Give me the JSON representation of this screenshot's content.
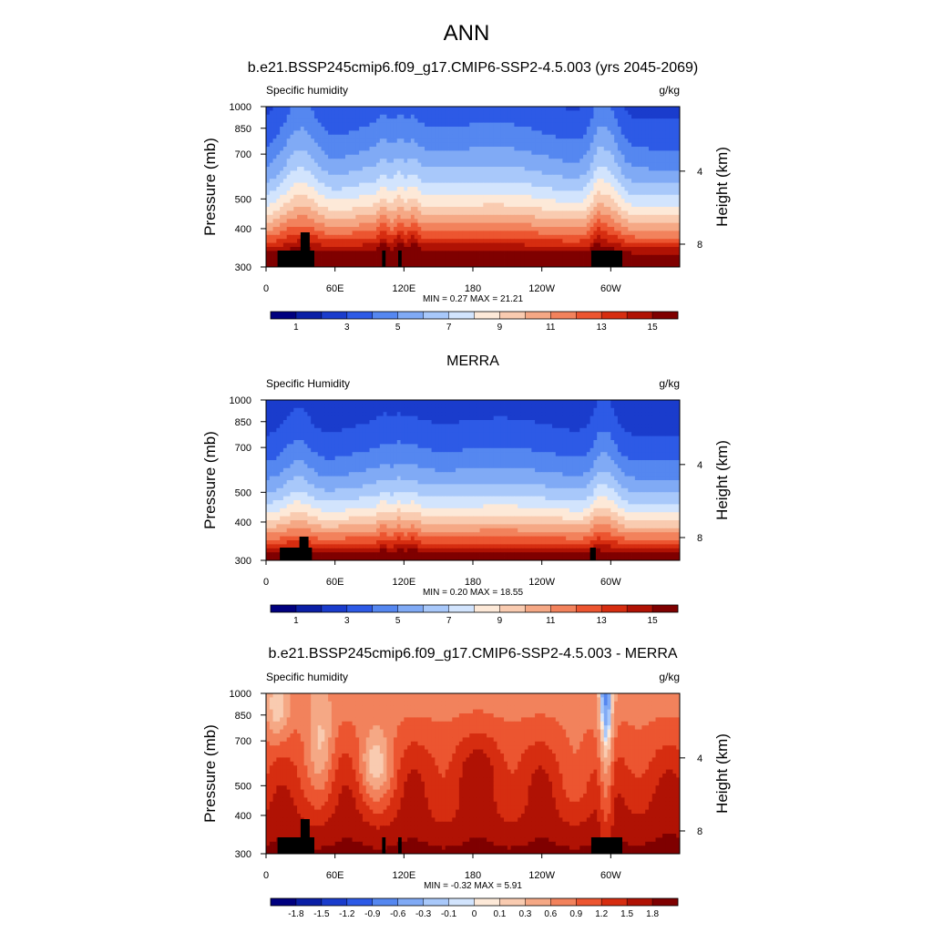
{
  "figure_title": "ANN",
  "chart_data": [
    {
      "type": "heatmap",
      "title": "b.e21.BSSP245cmip6.f09_g17.CMIP6-SSP2-4.5.003 (yrs 2045-2069)",
      "left_string": "Specific humidity",
      "right_string": "g/kg",
      "ylabel": "Pressure (mb)",
      "ylabel_right": "Height (km)",
      "x_ticks": [
        "0",
        "60E",
        "120E",
        "180",
        "120W",
        "60W"
      ],
      "x_tick_lons": [
        0,
        60,
        120,
        180,
        240,
        300
      ],
      "xlim": [
        0,
        360
      ],
      "y_ticks": [
        "300",
        "400",
        "500",
        "700",
        "850",
        "1000"
      ],
      "y_tick_values": [
        300,
        400,
        500,
        700,
        850,
        1000
      ],
      "ylim": [
        300,
        1000
      ],
      "right_ticks": [
        "8",
        "4"
      ],
      "right_tick_pressures": [
        356,
        616
      ],
      "min_max": "MIN =   0.27  MAX =  21.21",
      "min": 0.27,
      "max": 21.21,
      "colorbar_levels": [
        0,
        1,
        2,
        3,
        4,
        5,
        6,
        7,
        8,
        9,
        10,
        11,
        12,
        13,
        14,
        15
      ],
      "colorbar_labels": [
        "1",
        "3",
        "5",
        "7",
        "9",
        "11",
        "13",
        "15"
      ],
      "colors": [
        "#00007f",
        "#0a1fa6",
        "#1a3ccc",
        "#2d5ae6",
        "#5587f0",
        "#80aaf5",
        "#a8c8fa",
        "#d2e4fd",
        "#fde9d8",
        "#f9cbb0",
        "#f5a885",
        "#f2825c",
        "#ec5530",
        "#d62d10",
        "#b01204",
        "#7f0000"
      ],
      "mountains_lon": [
        [
          10,
          42
        ],
        [
          101,
          104
        ],
        [
          115,
          118
        ],
        [
          283,
          310
        ]
      ]
    },
    {
      "type": "heatmap",
      "title": "MERRA",
      "left_string": "Specific Humidity",
      "right_string": "g/kg",
      "ylabel": "Pressure (mb)",
      "ylabel_right": "Height (km)",
      "x_ticks": [
        "0",
        "60E",
        "120E",
        "180",
        "120W",
        "60W"
      ],
      "x_tick_lons": [
        0,
        60,
        120,
        180,
        240,
        300
      ],
      "xlim": [
        0,
        360
      ],
      "y_ticks": [
        "300",
        "400",
        "500",
        "700",
        "850",
        "1000"
      ],
      "y_tick_values": [
        300,
        400,
        500,
        700,
        850,
        1000
      ],
      "ylim": [
        300,
        1000
      ],
      "right_ticks": [
        "8",
        "4"
      ],
      "right_tick_pressures": [
        356,
        616
      ],
      "min_max": "MIN =   0.20  MAX =  18.55",
      "min": 0.2,
      "max": 18.55,
      "colorbar_levels": [
        0,
        1,
        2,
        3,
        4,
        5,
        6,
        7,
        8,
        9,
        10,
        11,
        12,
        13,
        14,
        15
      ],
      "colorbar_labels": [
        "1",
        "3",
        "5",
        "7",
        "9",
        "11",
        "13",
        "15"
      ],
      "colors": [
        "#00007f",
        "#0a1fa6",
        "#1a3ccc",
        "#2d5ae6",
        "#5587f0",
        "#80aaf5",
        "#a8c8fa",
        "#d2e4fd",
        "#fde9d8",
        "#f9cbb0",
        "#f5a885",
        "#f2825c",
        "#ec5530",
        "#d62d10",
        "#b01204",
        "#7f0000"
      ],
      "mountains_lon": [
        [
          12,
          40
        ],
        [
          282,
          287
        ]
      ]
    },
    {
      "type": "heatmap",
      "title": "b.e21.BSSP245cmip6.f09_g17.CMIP6-SSP2-4.5.003 - MERRA",
      "left_string": "Specific humidity",
      "right_string": "g/kg",
      "ylabel": "Pressure (mb)",
      "ylabel_right": "Height (km)",
      "x_ticks": [
        "0",
        "60E",
        "120E",
        "180",
        "120W",
        "60W"
      ],
      "x_tick_lons": [
        0,
        60,
        120,
        180,
        240,
        300
      ],
      "xlim": [
        0,
        360
      ],
      "y_ticks": [
        "300",
        "400",
        "500",
        "700",
        "850",
        "1000"
      ],
      "y_tick_values": [
        300,
        400,
        500,
        700,
        850,
        1000
      ],
      "ylim": [
        300,
        1000
      ],
      "right_ticks": [
        "8",
        "4"
      ],
      "right_tick_pressures": [
        356,
        616
      ],
      "min_max": "MIN =  -0.32  MAX =   5.91",
      "min": -0.32,
      "max": 5.91,
      "colorbar_levels": [
        -1.8,
        -1.5,
        -1.2,
        -0.9,
        -0.6,
        -0.3,
        -0.1,
        0,
        0.1,
        0.3,
        0.6,
        0.9,
        1.2,
        1.5,
        1.8
      ],
      "colorbar_labels": [
        "-1.8",
        "-1.5",
        "-1.2",
        "-0.9",
        "-0.6",
        "-0.3",
        "-0.1",
        "0",
        "0.1",
        "0.3",
        "0.6",
        "0.9",
        "1.2",
        "1.5",
        "1.8"
      ],
      "colors": [
        "#00007f",
        "#0a1fa6",
        "#1a3ccc",
        "#2d5ae6",
        "#5587f0",
        "#80aaf5",
        "#a8c8fa",
        "#d2e4fd",
        "#fde9d8",
        "#f9cbb0",
        "#f5a885",
        "#f2825c",
        "#ec5530",
        "#d62d10",
        "#b01204",
        "#7f0000"
      ],
      "mountains_lon": [
        [
          10,
          42
        ],
        [
          101,
          104
        ],
        [
          115,
          118
        ],
        [
          283,
          310
        ]
      ]
    }
  ]
}
